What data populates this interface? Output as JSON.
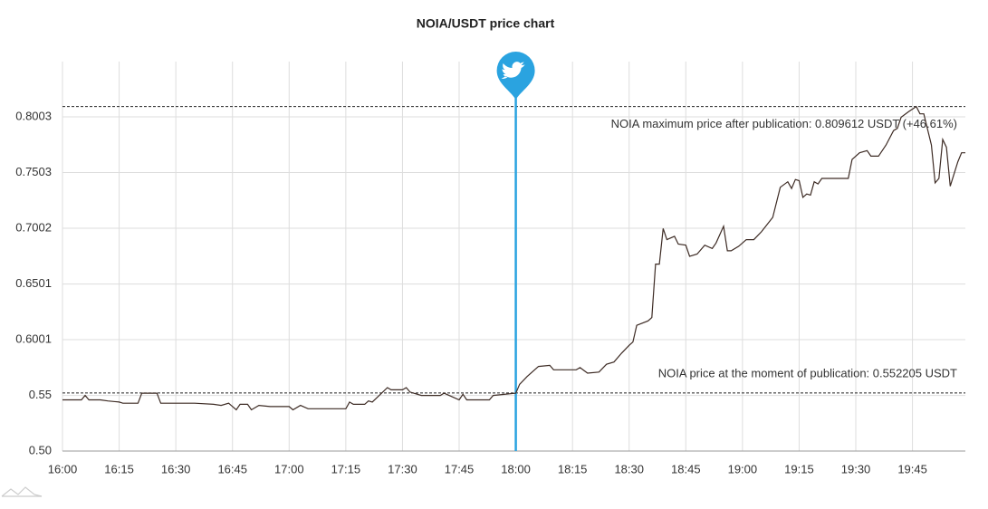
{
  "chart_data": {
    "type": "line",
    "title": "NOIA/USDT price chart",
    "color": "#3d2b24",
    "event_color": "#2aa3e0",
    "event_x": "18:00",
    "grid": true,
    "xlim": [
      "16:00",
      "19:59"
    ],
    "xticks": [
      "16:00",
      "16:15",
      "16:30",
      "16:45",
      "17:00",
      "17:15",
      "17:30",
      "17:45",
      "18:00",
      "18:15",
      "18:30",
      "18:45",
      "19:00",
      "19:15",
      "19:30",
      "19:45"
    ],
    "ylim": [
      0.5,
      0.85
    ],
    "yticks": [
      {
        "value": 0.5,
        "label": "0.50"
      },
      0.55,
      0.6001,
      0.6501,
      0.7002,
      0.7503,
      0.8003
    ],
    "reference_lines": [
      {
        "value": 0.809612,
        "label": "NOIA maximum price after publication: 0.809612 USDT (+46.61%)"
      },
      {
        "value": 0.552205,
        "label": "NOIA price at the moment of publication: 0.552205 USDT"
      }
    ],
    "x": [
      "16:00",
      "16:05",
      "16:06",
      "16:07",
      "16:10",
      "16:12",
      "16:15",
      "16:16",
      "16:20",
      "16:21",
      "16:25",
      "16:26",
      "16:35",
      "16:40",
      "16:42",
      "16:44",
      "16:46",
      "16:47",
      "16:49",
      "16:50",
      "16:52",
      "16:55",
      "17:00",
      "17:01",
      "17:03",
      "17:05",
      "17:15",
      "17:16",
      "17:17",
      "17:20",
      "17:21",
      "17:22",
      "17:26",
      "17:27",
      "17:30",
      "17:31",
      "17:32",
      "17:35",
      "17:40",
      "17:41",
      "17:43",
      "17:45",
      "17:46",
      "17:47",
      "17:53",
      "17:54",
      "18:00",
      "18:01",
      "18:03",
      "18:06",
      "18:09",
      "18:10",
      "18:16",
      "18:17",
      "18:19",
      "18:22",
      "18:24",
      "18:26",
      "18:28",
      "18:30",
      "18:31",
      "18:32",
      "18:35",
      "18:36",
      "18:37",
      "18:38",
      "18:39",
      "18:40",
      "18:42",
      "18:43",
      "18:45",
      "18:46",
      "18:48",
      "18:50",
      "18:52",
      "18:53",
      "18:55",
      "18:56",
      "18:57",
      "18:59",
      "19:01",
      "19:03",
      "19:05",
      "19:08",
      "19:10",
      "19:12",
      "19:13",
      "19:14",
      "19:15",
      "19:16",
      "19:17",
      "19:18",
      "19:19",
      "19:20",
      "19:21",
      "19:24",
      "19:28",
      "19:29",
      "19:31",
      "19:33",
      "19:34",
      "19:36",
      "19:38",
      "19:40",
      "19:41",
      "19:42",
      "19:44",
      "19:46",
      "19:47",
      "19:48",
      "19:50",
      "19:51",
      "19:52",
      "19:53",
      "19:54",
      "19:55",
      "19:57",
      "19:58",
      "19:59"
    ],
    "values": [
      0.546,
      0.546,
      0.55,
      0.546,
      0.546,
      0.545,
      0.544,
      0.543,
      0.543,
      0.552,
      0.552,
      0.543,
      0.543,
      0.542,
      0.541,
      0.543,
      0.537,
      0.542,
      0.542,
      0.537,
      0.541,
      0.54,
      0.54,
      0.537,
      0.541,
      0.538,
      0.538,
      0.544,
      0.542,
      0.542,
      0.545,
      0.544,
      0.557,
      0.555,
      0.555,
      0.557,
      0.553,
      0.55,
      0.55,
      0.552,
      0.549,
      0.546,
      0.551,
      0.546,
      0.546,
      0.55,
      0.552,
      0.56,
      0.567,
      0.576,
      0.577,
      0.573,
      0.573,
      0.575,
      0.57,
      0.571,
      0.578,
      0.58,
      0.588,
      0.595,
      0.598,
      0.613,
      0.617,
      0.62,
      0.668,
      0.668,
      0.7,
      0.69,
      0.693,
      0.686,
      0.685,
      0.675,
      0.677,
      0.685,
      0.682,
      0.687,
      0.702,
      0.68,
      0.68,
      0.684,
      0.69,
      0.69,
      0.697,
      0.71,
      0.737,
      0.742,
      0.736,
      0.744,
      0.743,
      0.728,
      0.731,
      0.73,
      0.742,
      0.74,
      0.745,
      0.745,
      0.745,
      0.762,
      0.768,
      0.77,
      0.765,
      0.765,
      0.775,
      0.788,
      0.79,
      0.8,
      0.805,
      0.8096,
      0.803,
      0.803,
      0.775,
      0.741,
      0.745,
      0.78,
      0.773,
      0.738,
      0.76,
      0.768,
      0.768
    ]
  }
}
